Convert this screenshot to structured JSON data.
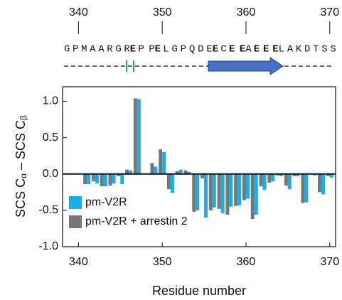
{
  "chart_data": {
    "type": "bar",
    "sequence": [
      {
        "text": "GPMAARGR",
        "color": "#222222"
      },
      {
        "text": "E",
        "color": "#22b14c"
      },
      {
        "text": "PP",
        "color": "#222222"
      },
      {
        "text": "E",
        "color": "#22b14c"
      },
      {
        "text": "LGPQDE",
        "color": "#222222"
      },
      {
        "text": "E",
        "color": "#22b14c"
      },
      {
        "text": "C",
        "color": "#222222"
      },
      {
        "text": "EE",
        "color": "#22b14c"
      },
      {
        "text": "A",
        "color": "#222222"
      },
      {
        "text": "EEE",
        "color": "#22b14c"
      },
      {
        "text": "LAKDTSS",
        "color": "#222222"
      }
    ],
    "xlabel": "Residue number",
    "ylabel": [
      "SCS C",
      "α",
      " – SCS C",
      "β"
    ],
    "x": [
      341,
      342,
      343,
      344,
      345,
      346,
      347,
      348,
      349,
      350,
      351,
      352,
      353,
      354,
      355,
      356,
      357,
      358,
      359,
      360,
      361,
      362,
      363,
      364,
      365,
      366,
      367,
      368,
      369,
      370
    ],
    "series": [
      {
        "name": "pm-V2R",
        "color": "#1aaee8",
        "values": [
          -0.14,
          -0.13,
          -0.17,
          -0.13,
          -0.14,
          0.05,
          1.03,
          0.0,
          0.1,
          0.3,
          -0.26,
          0.06,
          0.03,
          -0.5,
          -0.6,
          -0.46,
          -0.54,
          -0.45,
          -0.43,
          -0.34,
          -0.56,
          -0.22,
          -0.1,
          -0.03,
          -0.21,
          -0.03,
          -0.39,
          -0.02,
          -0.28,
          -0.05
        ]
      },
      {
        "name": "pm-V2R + arrestin 2",
        "color": "#777777",
        "values": [
          -0.14,
          -0.1,
          -0.17,
          -0.16,
          -0.03,
          0.06,
          1.04,
          0.0,
          0.15,
          0.34,
          -0.21,
          0.04,
          0.05,
          -0.52,
          -0.06,
          -0.5,
          -0.48,
          -0.56,
          -0.44,
          -0.36,
          -0.62,
          -0.17,
          -0.12,
          -0.02,
          -0.16,
          -0.03,
          -0.4,
          -0.01,
          -0.25,
          -0.03
        ]
      }
    ],
    "xlim": [
      338.1,
      370.7
    ],
    "xticks": [
      340,
      350,
      360,
      370
    ],
    "ylim": [
      -1.0,
      1.2
    ],
    "yticks": [
      {
        "value": -1.0,
        "label": "-1.0"
      },
      {
        "value": -0.5,
        "label": "-0.5"
      },
      {
        "value": 0.0,
        "label": "0.0"
      },
      {
        "value": 0.5,
        "label": "0.5"
      },
      {
        "value": 1.0,
        "label": "1.0"
      }
    ]
  }
}
